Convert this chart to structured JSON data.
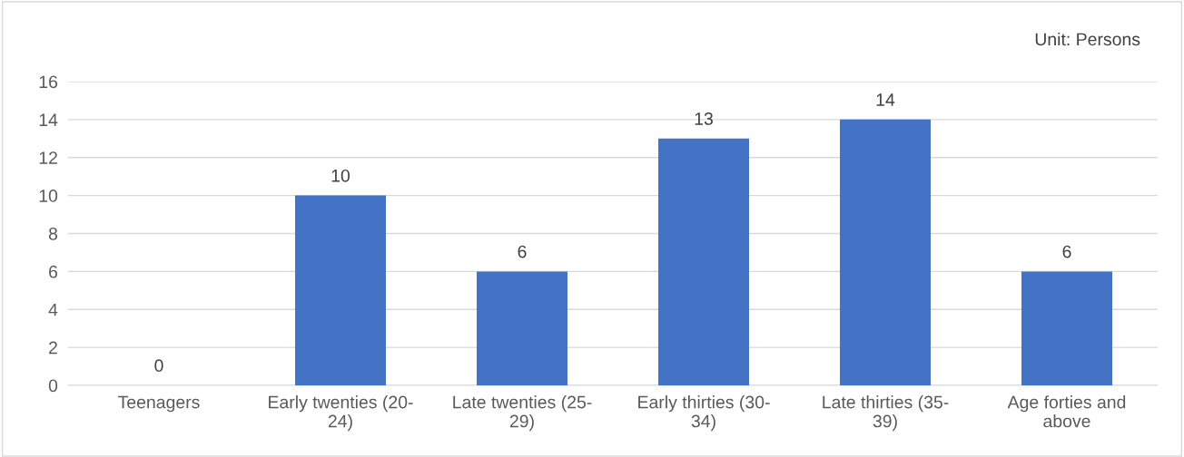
{
  "chart_data": {
    "type": "bar",
    "categories": [
      "Teenagers",
      "Early twenties (20-24)",
      "Late twenties (25-29)",
      "Early thirties (30-34)",
      "Late thirties (35-39)",
      "Age forties and above"
    ],
    "values": [
      0,
      10,
      6,
      13,
      14,
      6
    ],
    "color": "#4472c4",
    "ylim": [
      0,
      16
    ],
    "yticks": [
      0,
      2,
      4,
      6,
      8,
      10,
      12,
      14,
      16
    ],
    "grid": "y",
    "data_labels": true,
    "annotations": [
      "Unit: Persons"
    ]
  }
}
